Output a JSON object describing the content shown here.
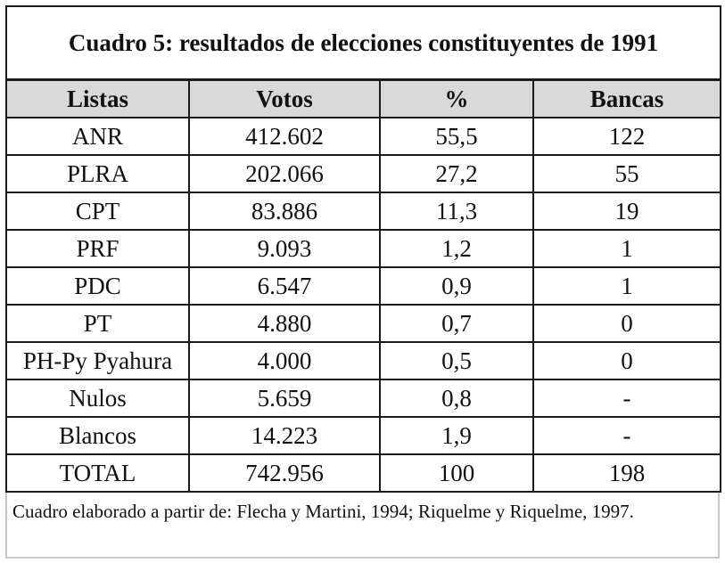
{
  "table": {
    "title": "Cuadro 5: resultados de elecciones constituyentes de 1991",
    "headers": [
      "Listas",
      "Votos",
      "%",
      "Bancas"
    ],
    "rows": [
      [
        "ANR",
        "412.602",
        "55,5",
        "122"
      ],
      [
        "PLRA",
        "202.066",
        "27,2",
        "55"
      ],
      [
        "CPT",
        "83.886",
        "11,3",
        "19"
      ],
      [
        "PRF",
        "9.093",
        "1,2",
        "1"
      ],
      [
        "PDC",
        "6.547",
        "0,9",
        "1"
      ],
      [
        "PT",
        "4.880",
        "0,7",
        "0"
      ],
      [
        "PH-Py Pyahura",
        "4.000",
        "0,5",
        "0"
      ],
      [
        "Nulos",
        "5.659",
        "0,8",
        "-"
      ],
      [
        "Blancos",
        "14.223",
        "1,9",
        "-"
      ],
      [
        "TOTAL",
        "742.956",
        "100",
        "198"
      ]
    ],
    "note": "Cuadro elaborado a partir de: Flecha y Martini, 1994; Riquelme y Riquelme, 1997.",
    "header_bg": "#d9d9d9"
  }
}
